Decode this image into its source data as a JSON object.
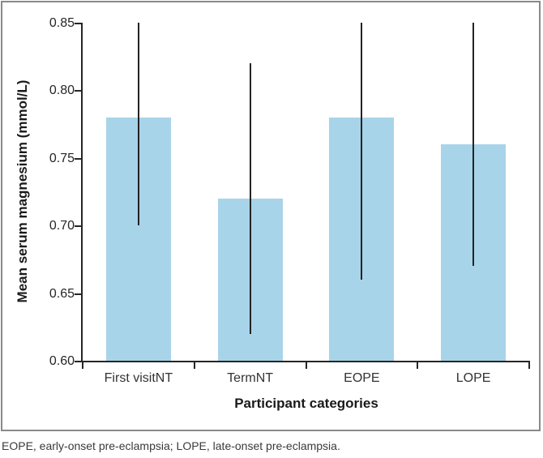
{
  "figure": {
    "footnote": "EOPE, early-onset pre-eclampsia; LOPE, late-onset pre-eclampsia."
  },
  "chart_data": {
    "type": "bar",
    "title": "",
    "categories": [
      "First visitNT",
      "TermNT",
      "EOPE",
      "LOPE"
    ],
    "values": [
      0.78,
      0.72,
      0.78,
      0.76
    ],
    "error_bars": {
      "low": [
        0.7,
        0.62,
        0.66,
        0.67
      ],
      "high": [
        0.85,
        0.82,
        0.85,
        0.85
      ]
    },
    "xlabel": "Participant categories",
    "ylabel": "Mean serum magnesium (mmol/L)",
    "ylim": [
      0.6,
      0.85
    ],
    "ytick_labels": [
      "0.60",
      "0.65",
      "0.70",
      "0.75",
      "0.80",
      "0.85"
    ],
    "grid": false,
    "legend": null,
    "bar_color": "#A8D4E9",
    "error_bar_color": "#232323",
    "axis_color": "#262626"
  }
}
